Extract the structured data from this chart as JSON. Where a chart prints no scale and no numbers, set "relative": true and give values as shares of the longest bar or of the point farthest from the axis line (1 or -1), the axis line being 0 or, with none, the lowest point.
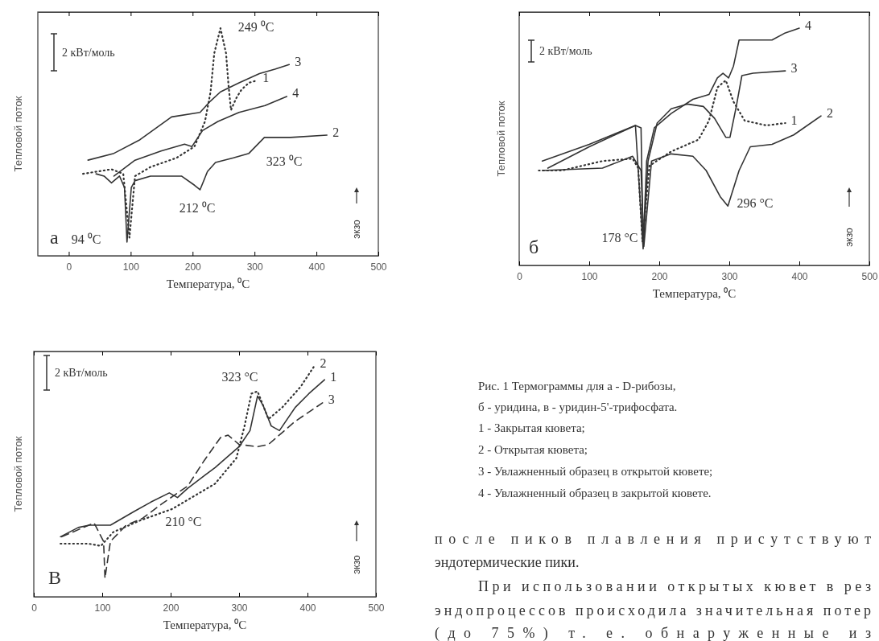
{
  "chart_data": [
    {
      "type": "line",
      "relative": true,
      "title": "а",
      "xlabel": "Температура, ⁰C",
      "ylabel": "Тепловой поток",
      "xlim": [
        -50,
        500
      ],
      "xticks": [
        0,
        100,
        200,
        300,
        400,
        500
      ],
      "annotations": [
        "2 кВт/моль",
        "экзо",
        "249 ⁰C",
        "212 ⁰C",
        "323 ⁰C",
        "94 ⁰C"
      ],
      "series": [
        {
          "name": "1",
          "color": "#333333",
          "line_style": "dotted",
          "x": [
            23,
            69,
            88,
            98,
            107,
            132,
            174,
            203,
            220,
            229,
            235,
            245,
            254,
            258,
            262,
            270,
            279,
            291,
            304
          ],
          "values": [
            0.36,
            0.38,
            0.36,
            0.08,
            0.35,
            0.39,
            0.43,
            0.48,
            0.59,
            0.72,
            0.89,
            1.0,
            0.89,
            0.75,
            0.64,
            0.69,
            0.73,
            0.76,
            0.77
          ]
        },
        {
          "name": "2",
          "color": "#333333",
          "line_style": "solid",
          "x": [
            44,
            57,
            69,
            82,
            90,
            94,
            101,
            107,
            132,
            182,
            203,
            212,
            224,
            237,
            266,
            291,
            316,
            358,
            417
          ],
          "values": [
            0.36,
            0.35,
            0.32,
            0.35,
            0.3,
            0.06,
            0.3,
            0.33,
            0.35,
            0.35,
            0.31,
            0.29,
            0.37,
            0.41,
            0.43,
            0.45,
            0.52,
            0.52,
            0.53
          ]
        },
        {
          "name": "3",
          "color": "#333333",
          "line_style": "solid",
          "x": [
            31,
            73,
            115,
            166,
            212,
            229,
            245,
            275,
            308,
            333,
            356
          ],
          "values": [
            0.42,
            0.45,
            0.51,
            0.61,
            0.63,
            0.68,
            0.72,
            0.76,
            0.8,
            0.82,
            0.84
          ]
        },
        {
          "name": "4",
          "color": "#333333",
          "line_style": "solid",
          "x": [
            73,
            107,
            149,
            187,
            199,
            216,
            241,
            275,
            317,
            352
          ],
          "values": [
            0.35,
            0.42,
            0.46,
            0.49,
            0.48,
            0.55,
            0.59,
            0.63,
            0.66,
            0.7
          ]
        }
      ]
    },
    {
      "type": "line",
      "relative": true,
      "title": "б",
      "xlabel": "Температура, ⁰C",
      "ylabel": "Тепловой поток",
      "xlim": [
        0,
        500
      ],
      "xticks": [
        0,
        100,
        200,
        300,
        400,
        500
      ],
      "annotations": [
        "2 кВт/моль",
        "экзо",
        "178 °C",
        "296 °C"
      ],
      "series": [
        {
          "name": "1",
          "color": "#333333",
          "line_style": "dotted",
          "x": [
            28,
            61,
            119,
            162,
            170,
            176,
            186,
            217,
            256,
            271,
            283,
            295,
            306,
            322,
            353,
            380
          ],
          "values": [
            0.4,
            0.4,
            0.44,
            0.45,
            0.41,
            0.1,
            0.42,
            0.48,
            0.53,
            0.61,
            0.75,
            0.78,
            0.69,
            0.61,
            0.59,
            0.6
          ]
        },
        {
          "name": "2",
          "color": "#333333",
          "line_style": "solid",
          "x": [
            33,
            119,
            162,
            174,
            178,
            189,
            217,
            248,
            267,
            287,
            298,
            314,
            330,
            361,
            392,
            431
          ],
          "values": [
            0.4,
            0.41,
            0.46,
            0.4,
            0.08,
            0.44,
            0.47,
            0.46,
            0.4,
            0.29,
            0.25,
            0.4,
            0.5,
            0.51,
            0.55,
            0.63
          ]
        },
        {
          "name": "3",
          "color": "#333333",
          "line_style": "solid",
          "x": [
            41,
            100,
            166,
            177,
            184,
            197,
            217,
            240,
            263,
            279,
            295,
            301,
            310,
            318,
            334,
            380
          ],
          "values": [
            0.41,
            0.5,
            0.59,
            0.07,
            0.44,
            0.6,
            0.66,
            0.68,
            0.67,
            0.62,
            0.54,
            0.54,
            0.67,
            0.8,
            0.81,
            0.82
          ]
        },
        {
          "name": "4",
          "color": "#333333",
          "line_style": "solid",
          "x": [
            33,
            100,
            166,
            174,
            177,
            182,
            193,
            217,
            248,
            271,
            283,
            291,
            299,
            306,
            314,
            334,
            361,
            380,
            400
          ],
          "values": [
            0.44,
            0.51,
            0.59,
            0.58,
            0.08,
            0.44,
            0.58,
            0.64,
            0.7,
            0.72,
            0.79,
            0.81,
            0.79,
            0.84,
            0.95,
            0.95,
            0.95,
            0.98,
            1.0
          ]
        }
      ]
    },
    {
      "type": "line",
      "relative": true,
      "title": "В",
      "xlabel": "Температура, ⁰C",
      "ylabel": "Тепловой поток",
      "xlim": [
        0,
        500
      ],
      "xticks": [
        0,
        100,
        200,
        300,
        400,
        500
      ],
      "annotations": [
        "2 кВт/моль",
        "экзо",
        "323 °C",
        "210 °C"
      ],
      "series": [
        {
          "name": "1",
          "color": "#333333",
          "line_style": "solid",
          "x": [
            39,
            65,
            81,
            100,
            112,
            147,
            171,
            198,
            210,
            225,
            265,
            300,
            316,
            327,
            335,
            347,
            359,
            382,
            402,
            425
          ],
          "values": [
            0.26,
            0.3,
            0.31,
            0.31,
            0.31,
            0.37,
            0.41,
            0.45,
            0.43,
            0.47,
            0.56,
            0.65,
            0.72,
            0.87,
            0.83,
            0.74,
            0.72,
            0.82,
            0.88,
            0.94
          ]
        },
        {
          "name": "2",
          "color": "#333333",
          "line_style": "dotted",
          "x": [
            39,
            80,
            98,
            116,
            155,
            202,
            225,
            265,
            296,
            308,
            318,
            327,
            343,
            363,
            390,
            410
          ],
          "values": [
            0.23,
            0.23,
            0.22,
            0.28,
            0.33,
            0.38,
            0.42,
            0.49,
            0.6,
            0.74,
            0.88,
            0.89,
            0.77,
            0.82,
            0.91,
            1.0
          ]
        },
        {
          "name": "3",
          "color": "#333333",
          "line_style": "dashed",
          "x": [
            41,
            88,
            102,
            104,
            112,
            135,
            159,
            186,
            225,
            249,
            273,
            284,
            300,
            327,
            343,
            382,
            422
          ],
          "values": [
            0.26,
            0.32,
            0.24,
            0.08,
            0.24,
            0.31,
            0.34,
            0.4,
            0.48,
            0.59,
            0.69,
            0.7,
            0.66,
            0.65,
            0.66,
            0.76,
            0.84
          ]
        }
      ]
    },
    {
      "type": "other",
      "annotations": [
        "Рис. 1 Термограммы для а - D-рибозы,",
        "б -  уридина, в -  уридин-5'-трифосфата.",
        "1 - Закрытая кювета;",
        "2 - Открытая кювета;",
        "3 - Увлажненный образец в открытой кювете;",
        "4 - Увлажненный образец в закрытой кювете.",
        "после пиков плавления присутствуют",
        "эндотермические пики.",
        "При использовании открытых кювет в рез",
        "эндопроцессов происходила значительная потер",
        "(до 75%) т. е. обнаруженные из"
      ]
    }
  ]
}
